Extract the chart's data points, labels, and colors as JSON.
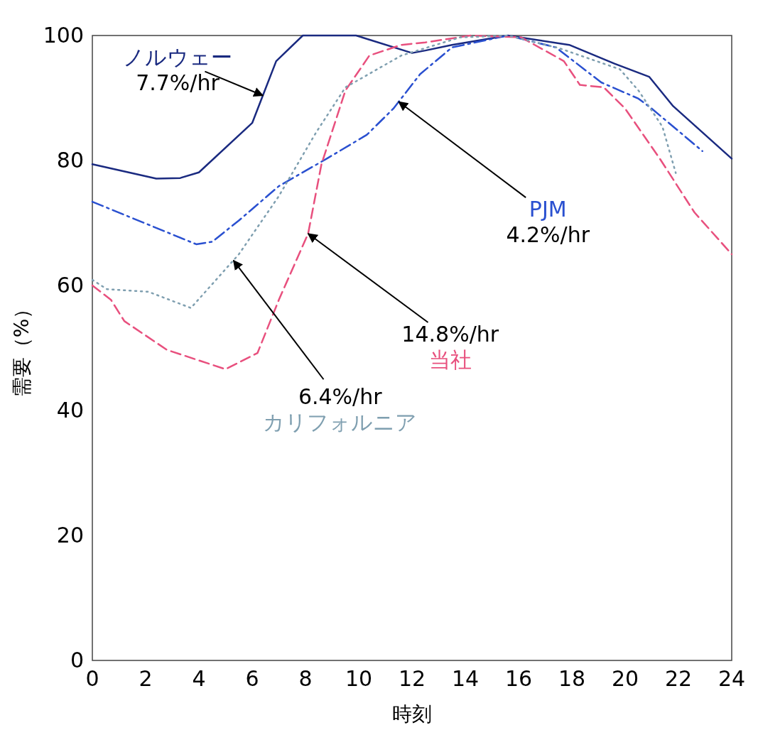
{
  "chart_data": {
    "type": "line",
    "xlabel": "時刻",
    "ylabel": "需要（%）",
    "xlim": [
      0,
      24
    ],
    "ylim": [
      0,
      100
    ],
    "xticks": [
      0,
      2,
      4,
      6,
      8,
      10,
      12,
      14,
      16,
      18,
      20,
      22,
      24
    ],
    "yticks": [
      0,
      20,
      40,
      60,
      80,
      100
    ],
    "grid": false,
    "legend": false,
    "series": [
      {
        "name": "ノルウェー",
        "color": "#1a2a80",
        "line_style": "solid",
        "x": [
          0,
          2.4,
          3.3,
          4.0,
          6.0,
          6.4,
          6.9,
          7.9,
          9.9,
          12.0,
          12.5,
          13.5,
          15.6,
          17.9,
          19.6,
          20.9,
          21.8,
          24
        ],
        "values": [
          79.4,
          77.1,
          77.2,
          78.1,
          86,
          90.4,
          95.9,
          100,
          100,
          97.2,
          97.6,
          98.5,
          100,
          98.5,
          95.5,
          93.4,
          88.7,
          80.3
        ]
      },
      {
        "name": "PJM",
        "color": "#2a50d0",
        "line_style": "dashdot",
        "x": [
          0,
          3.9,
          4.5,
          5.5,
          7.0,
          8.8,
          10.3,
          11.3,
          12.3,
          13.5,
          15.6,
          17.4,
          19.1,
          20.5,
          21.0,
          22.9
        ],
        "values": [
          73.4,
          66.6,
          67,
          70.4,
          75.9,
          80.3,
          84.1,
          88.3,
          93.8,
          98.1,
          100,
          98.1,
          92.5,
          89.9,
          88.3,
          81.5
        ]
      },
      {
        "name": "当社",
        "color": "#e8507e",
        "line_style": "dashed",
        "x": [
          0,
          0.7,
          1.2,
          2.8,
          5.0,
          6.2,
          7.0,
          8.1,
          8.6,
          9.5,
          10.4,
          11.6,
          12.5,
          14.2,
          16.1,
          17.7,
          18.3,
          19.2,
          20.0,
          21.3,
          22.6,
          24
        ],
        "values": [
          60,
          57.7,
          54.3,
          49.7,
          46.6,
          49.2,
          57.7,
          68.3,
          79.4,
          91.2,
          96.8,
          98.5,
          98.9,
          100,
          99.7,
          95.9,
          92.1,
          91.7,
          88.3,
          80.3,
          71.7,
          65
        ]
      },
      {
        "name": "カリフォルニア",
        "color": "#7f9fb0",
        "line_style": "dotted",
        "x": [
          0,
          0.55,
          2.1,
          3.7,
          5.5,
          7.0,
          8.4,
          9.5,
          11.6,
          13.8,
          15.6,
          17.5,
          19.8,
          20.5,
          21.4,
          21.9
        ],
        "values": [
          60.9,
          59.4,
          59,
          56.4,
          65,
          74.3,
          84.5,
          91.7,
          96.8,
          99.7,
          100,
          98,
          94.6,
          91.2,
          85.4,
          78
        ]
      }
    ],
    "annotations": [
      {
        "text": "7.7%/hr",
        "x": 6.4,
        "y": 90.4
      },
      {
        "text": "4.2%/hr",
        "x": 11.5,
        "y": 89.4
      },
      {
        "text": "14.8%/hr",
        "x": 8.1,
        "y": 68.3
      },
      {
        "text": "6.4%/hr",
        "x": 5.3,
        "y": 64.0
      }
    ]
  }
}
